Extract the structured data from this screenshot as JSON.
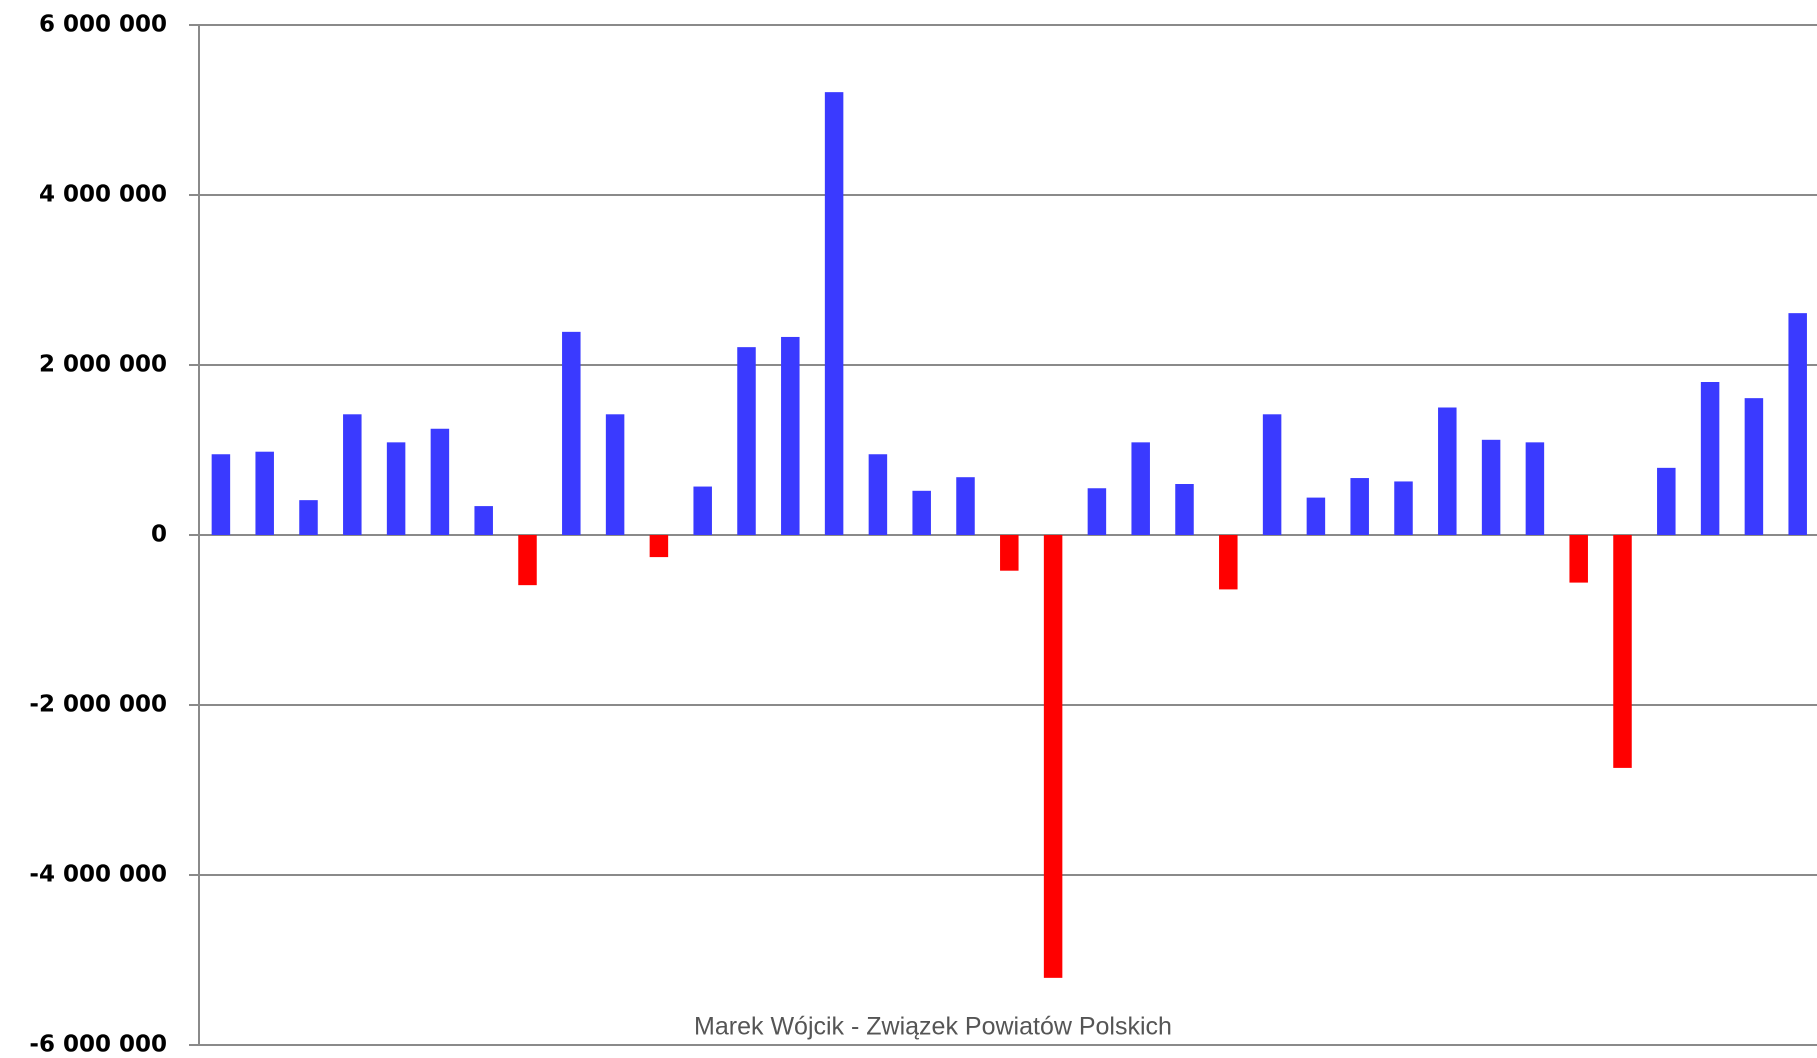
{
  "chart_data": {
    "type": "bar",
    "footer": "Marek Wójcik - Związek Powiatów Polskich",
    "categories": [
      null,
      null,
      null,
      null,
      null,
      null,
      null,
      null,
      null,
      null,
      null,
      null,
      null,
      null,
      null,
      null,
      null,
      null,
      null,
      null,
      null,
      null,
      null,
      null,
      null,
      null,
      null,
      null,
      null,
      null,
      null,
      null,
      null,
      null,
      null,
      null,
      null
    ],
    "values": [
      950000,
      980000,
      410000,
      1420000,
      1090000,
      1250000,
      340000,
      -590000,
      2390000,
      1420000,
      -260000,
      570000,
      2210000,
      2330000,
      5210000,
      950000,
      520000,
      680000,
      -420000,
      -5210000,
      550000,
      1090000,
      600000,
      -640000,
      1420000,
      440000,
      670000,
      630000,
      1500000,
      1120000,
      1090000,
      -560000,
      -2740000,
      790000,
      1800000,
      1610000,
      2610000
    ],
    "color": "#3a3aff",
    "negative_color": "#ff0000",
    "ylim": [
      -6000000,
      6000000
    ],
    "yticks": [
      {
        "value": -6000000,
        "label": "-6 000 000"
      },
      {
        "value": -4000000,
        "label": "-4 000 000"
      },
      {
        "value": -2000000,
        "label": "-2 000 000"
      },
      {
        "value": 0,
        "label": "0"
      },
      {
        "value": 2000000,
        "label": "2 000 000"
      },
      {
        "value": 4000000,
        "label": "4 000 000"
      },
      {
        "value": 6000000,
        "label": "6 000 000"
      }
    ],
    "grid": true
  }
}
